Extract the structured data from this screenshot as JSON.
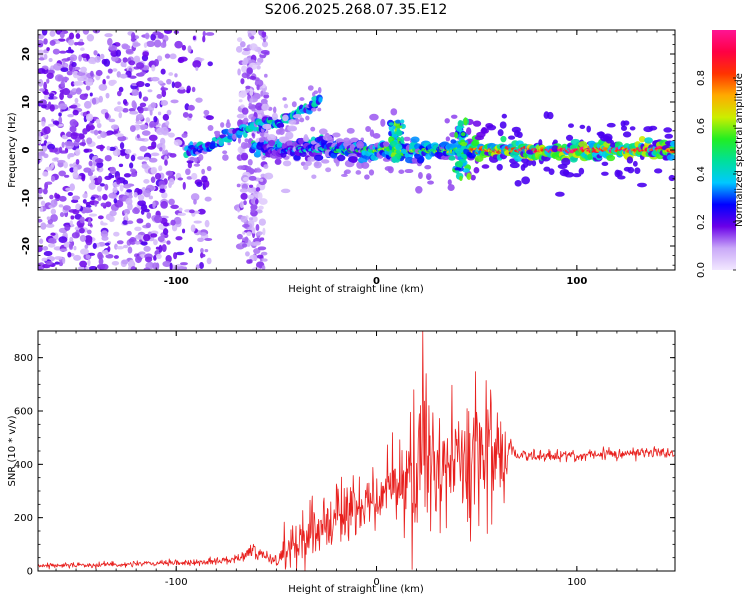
{
  "title": "S206.2025.268.07.35.E12",
  "chart_data": [
    {
      "type": "heatmap",
      "name": "spectrogram",
      "xlabel": "Height of straight line (km)",
      "ylabel": "Frequency (Hz)",
      "xlim": [
        -169,
        149
      ],
      "ylim": [
        -25,
        25
      ],
      "xticks": [
        -100,
        0,
        100
      ],
      "xtick_labels": [
        "-100",
        "0",
        "100"
      ],
      "yticks": [
        -20,
        -10,
        0,
        10,
        20
      ],
      "ytick_labels": [
        "-20",
        "-10",
        "0",
        "10",
        "20"
      ],
      "colorbar": {
        "label": "Normalized spectral amplitude",
        "range": [
          0,
          1
        ],
        "ticks": [
          0.0,
          0.2,
          0.4,
          0.6,
          0.8
        ],
        "tick_labels": [
          "0.0",
          "0.2",
          "0.4",
          "0.6",
          "0.8"
        ],
        "stops": [
          "#f2e8ff",
          "#c9a8f8",
          "#6a00e8",
          "#0000ff",
          "#00c8ff",
          "#00e09a",
          "#22ee22",
          "#ccee00",
          "#ffaa00",
          "#ff3300",
          "#ff0044",
          "#ff1493"
        ]
      },
      "features": [
        {
          "name": "broadband noise",
          "x_range": [
            -169,
            -83
          ],
          "freq_range": [
            -25,
            25
          ],
          "amplitude": 0.15
        },
        {
          "name": "noise band",
          "x_range": [
            -69,
            -55
          ],
          "freq_range": [
            -25,
            25
          ],
          "amplitude": 0.12
        },
        {
          "name": "upper chirp",
          "points": [
            [
              -95,
              0
            ],
            [
              -85,
              0.5
            ],
            [
              -72,
              3.5
            ],
            [
              -60,
              5
            ],
            [
              -45,
              6.5
            ],
            [
              -35,
              8.5
            ],
            [
              -28,
              11
            ]
          ],
          "amplitude": 0.3
        },
        {
          "name": "lower chirp",
          "points": [
            [
              -62,
              0
            ],
            [
              -50,
              0.8
            ],
            [
              -35,
              1.2
            ],
            [
              -20,
              0.6
            ],
            [
              -5,
              0.2
            ]
          ],
          "amplitude": 0.3
        },
        {
          "name": "carrier",
          "x_range": [
            -55,
            149
          ],
          "freq": 0,
          "amplitude_profile": [
            [
              -55,
              0.3
            ],
            [
              -30,
              0.45
            ],
            [
              0,
              0.6
            ],
            [
              20,
              0.6
            ],
            [
              40,
              0.65
            ],
            [
              60,
              0.95
            ],
            [
              149,
              0.95
            ]
          ]
        },
        {
          "name": "burst",
          "x": 10,
          "freq_range": [
            -2,
            6
          ],
          "amplitude": 0.55
        },
        {
          "name": "burst",
          "x": 42,
          "freq_range": [
            -6,
            6
          ],
          "amplitude": 0.5
        }
      ]
    },
    {
      "type": "line",
      "name": "snr",
      "xlabel": "Height of straight line (km)",
      "ylabel": "SNR (10 * v/v)",
      "xlim": [
        -169,
        149
      ],
      "ylim": [
        0,
        900
      ],
      "xticks": [
        -100,
        0,
        100
      ],
      "xtick_labels": [
        "-100",
        "0",
        "100"
      ],
      "yticks": [
        0,
        200,
        400,
        600,
        800
      ],
      "ytick_labels": [
        "0",
        "200",
        "400",
        "600",
        "800"
      ],
      "color": "#e8201e",
      "series": [
        {
          "name": "SNR",
          "x": [
            -169,
            -150,
            -130,
            -110,
            -90,
            -75,
            -68,
            -63,
            -58,
            -50,
            -45,
            -40,
            -35,
            -30,
            -25,
            -20,
            -15,
            -10,
            -5,
            0,
            5,
            10,
            15,
            18,
            20,
            22,
            24,
            26,
            28,
            30,
            33,
            36,
            40,
            44,
            46,
            48,
            50,
            52,
            54,
            56,
            58,
            60,
            62,
            64,
            66,
            68,
            70,
            80,
            100,
            120,
            140,
            149
          ],
          "mean": [
            20,
            22,
            25,
            28,
            32,
            40,
            55,
            75,
            60,
            40,
            80,
            110,
            140,
            160,
            190,
            200,
            230,
            250,
            260,
            265,
            290,
            310,
            340,
            400,
            450,
            420,
            500,
            440,
            410,
            380,
            360,
            400,
            430,
            430,
            300,
            500,
            440,
            470,
            410,
            450,
            380,
            460,
            410,
            400,
            440,
            470,
            430,
            430,
            435,
            440,
            445,
            440
          ],
          "amp": [
            8,
            8,
            9,
            10,
            10,
            12,
            20,
            25,
            20,
            20,
            60,
            80,
            100,
            110,
            110,
            100,
            110,
            110,
            90,
            80,
            110,
            140,
            160,
            300,
            220,
            280,
            300,
            220,
            200,
            180,
            160,
            220,
            160,
            160,
            250,
            300,
            280,
            260,
            240,
            250,
            220,
            200,
            160,
            120,
            80,
            40,
            25,
            20,
            20,
            20,
            20,
            20
          ]
        }
      ]
    }
  ]
}
